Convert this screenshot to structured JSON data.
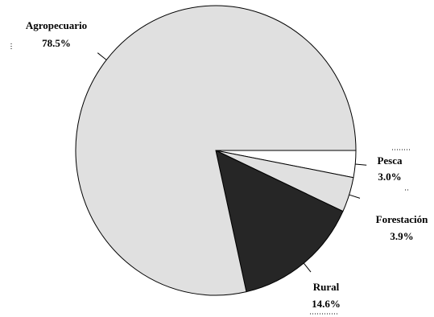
{
  "chart_data": {
    "type": "pie",
    "slices": [
      {
        "name": "Pesca",
        "percent_label": "3.0%",
        "value": 3.0,
        "color": "#ffffff"
      },
      {
        "name": "Forestación",
        "percent_label": "3.9%",
        "value": 3.9,
        "color": "#e0e0e0"
      },
      {
        "name": "Rural",
        "percent_label": "14.6%",
        "value": 14.6,
        "color": "#262626"
      },
      {
        "name": "Agropecuario",
        "percent_label": "78.5%",
        "value": 78.5,
        "color": "#e0e0e0"
      }
    ],
    "start_angle_deg": 0,
    "direction": "clockwise",
    "legend": "none (labels placed beside slices)"
  }
}
